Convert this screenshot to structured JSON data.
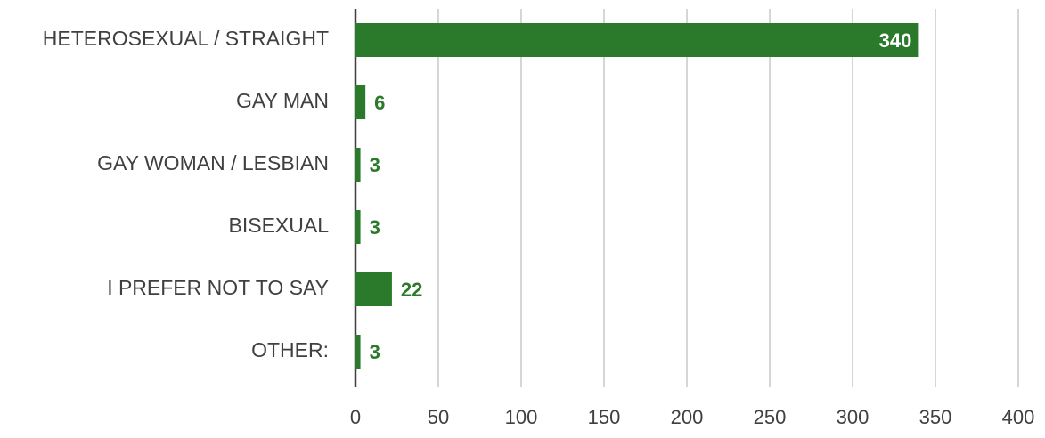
{
  "chart_data": {
    "type": "bar",
    "orientation": "horizontal",
    "categories": [
      "HETEROSEXUAL / STRAIGHT",
      "GAY MAN",
      "GAY WOMAN / LESBIAN",
      "BISEXUAL",
      "I PREFER NOT TO SAY",
      "OTHER:"
    ],
    "values": [
      340,
      6,
      3,
      3,
      22,
      3
    ],
    "color": "#2b7a2b",
    "xlim": [
      0,
      400
    ],
    "xticks": [
      0,
      50,
      100,
      150,
      200,
      250,
      300,
      350,
      400
    ],
    "grid": true
  }
}
